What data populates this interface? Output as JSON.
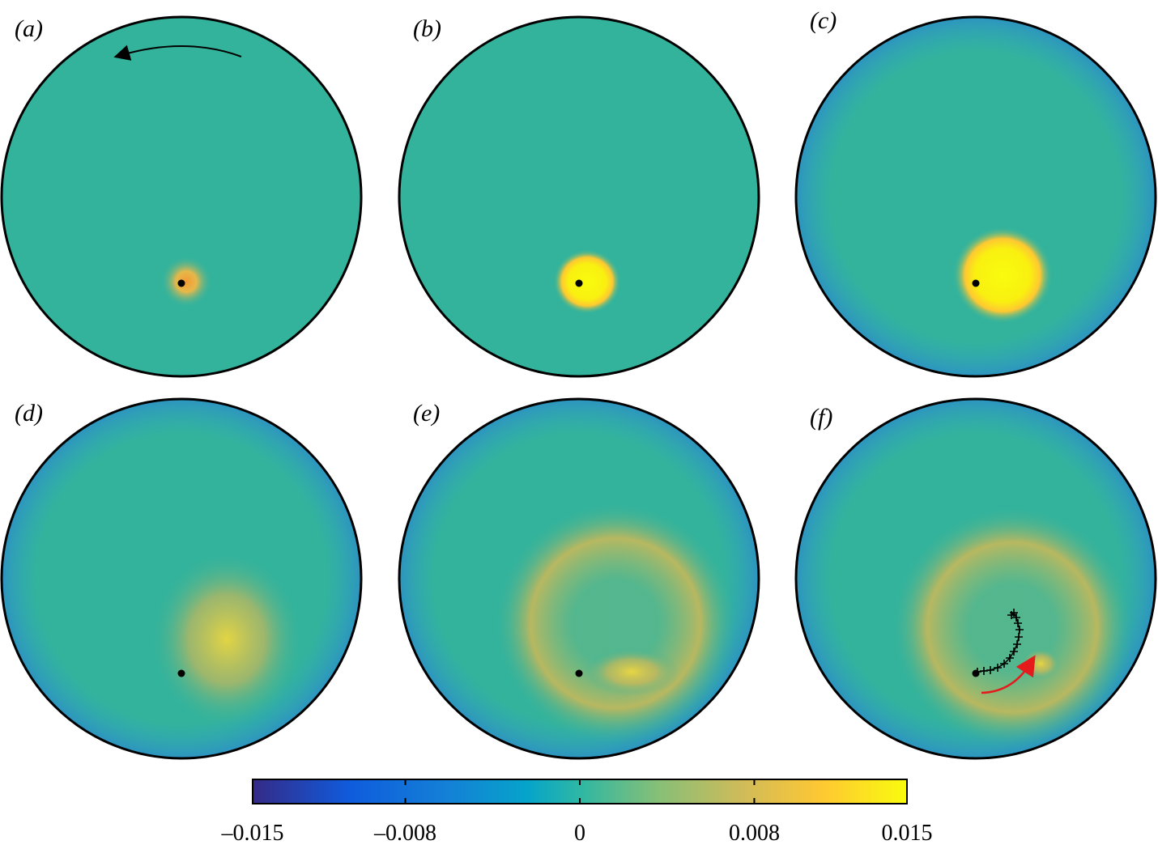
{
  "chart_data": {
    "type": "heatmap",
    "panels": [
      {
        "label": "(a)"
      },
      {
        "label": "(b)"
      },
      {
        "label": "(c)"
      },
      {
        "label": "(d)"
      },
      {
        "label": "(e)"
      },
      {
        "label": "(f)"
      }
    ],
    "colorbar": {
      "xlim": [
        -0.015,
        0.015
      ],
      "xticks": [
        {
          "value": -0.015,
          "label": "–0.015"
        },
        {
          "value": -0.008,
          "label": "–0.008"
        },
        0,
        0.008,
        0.015
      ]
    }
  }
}
